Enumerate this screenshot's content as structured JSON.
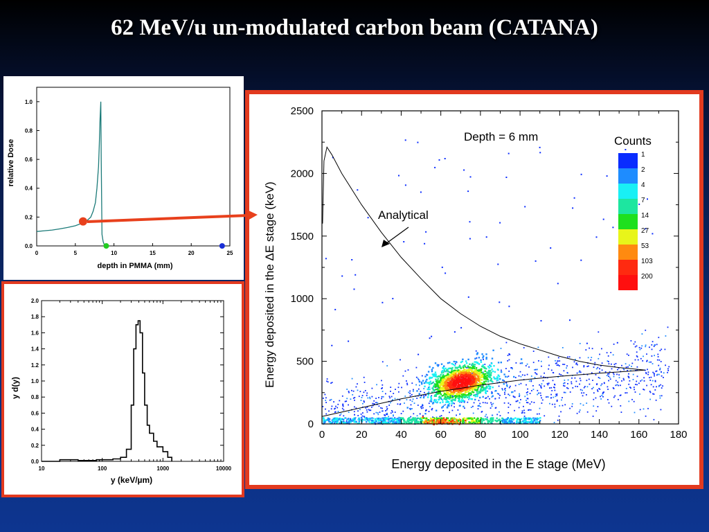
{
  "slide": {
    "title": "62 MeV/u un-modulated carbon beam (CATANA)"
  },
  "chart_data": [
    {
      "type": "line",
      "xlabel": "depth in PMMA (mm)",
      "ylabel": "relative Dose",
      "xlim": [
        0,
        25
      ],
      "ylim": [
        0,
        1.1
      ],
      "xticks": [
        "0",
        "5",
        "10",
        "15",
        "20",
        "25"
      ],
      "yticks": [
        "0.0",
        "0.2",
        "0.4",
        "0.6",
        "0.8",
        "1.0"
      ],
      "series": [
        {
          "x": [
            0,
            1,
            2,
            3,
            4,
            5,
            6,
            6.5,
            7,
            7.3,
            7.6,
            7.8,
            8.0,
            8.1,
            8.2,
            8.3,
            8.35,
            8.45,
            8.6,
            8.8
          ],
          "y": [
            0.1,
            0.105,
            0.11,
            0.118,
            0.128,
            0.14,
            0.16,
            0.175,
            0.2,
            0.24,
            0.3,
            0.4,
            0.55,
            0.7,
            0.88,
            1.0,
            0.6,
            0.08,
            0.03,
            0.0
          ]
        }
      ],
      "markers": [
        {
          "x": 6,
          "y": 0.17,
          "color": "#e8401c"
        },
        {
          "x": 9,
          "y": 0.0,
          "color": "#22cc22"
        },
        {
          "x": 24,
          "y": 0.0,
          "color": "#1a2fd6"
        }
      ],
      "grid": false
    },
    {
      "type": "line",
      "xlabel": "y (keV/µm)",
      "ylabel": "y d(y)",
      "xscale": "log",
      "xlim": [
        10,
        10000
      ],
      "ylim": [
        0,
        2.0
      ],
      "xticks": [
        "10",
        "100",
        "1000",
        "10000"
      ],
      "yticks": [
        "0.0",
        "0.2",
        "0.4",
        "0.6",
        "0.8",
        "1.0",
        "1.2",
        "1.4",
        "1.6",
        "1.8",
        "2.0"
      ],
      "series": [
        {
          "x": [
            10,
            20,
            40,
            80,
            150,
            200,
            250,
            300,
            330,
            360,
            390,
            420,
            460,
            500,
            550,
            600,
            700,
            800,
            1000,
            1200,
            1400
          ],
          "y": [
            0.0,
            0.02,
            0.01,
            0.02,
            0.03,
            0.05,
            0.15,
            0.7,
            1.4,
            1.7,
            1.75,
            1.6,
            1.1,
            0.7,
            0.45,
            0.35,
            0.25,
            0.18,
            0.12,
            0.05,
            0.0
          ]
        }
      ],
      "grid": false
    },
    {
      "type": "heatmap",
      "xlabel": "Energy deposited in the E stage (MeV)",
      "ylabel": "Energy deposited in the ΔE stage (keV)",
      "xlim": [
        0,
        180
      ],
      "ylim": [
        0,
        2500
      ],
      "xticks": [
        "0",
        "20",
        "40",
        "60",
        "80",
        "100",
        "120",
        "140",
        "160",
        "180"
      ],
      "yticks": [
        "0",
        "500",
        "1000",
        "1500",
        "2000",
        "2500"
      ],
      "annotation_depth": "Depth = 6 mm",
      "annotation_curve": "Analytical",
      "analytical_curve": {
        "x": [
          0.3,
          1,
          2.5,
          5,
          10,
          20,
          30,
          40,
          50,
          60,
          70,
          80,
          90,
          100,
          110,
          120,
          130,
          140,
          150,
          160,
          163
        ],
        "y": [
          1600,
          2100,
          2210,
          2150,
          2000,
          1750,
          1530,
          1330,
          1160,
          1000,
          880,
          780,
          700,
          640,
          590,
          540,
          500,
          470,
          450,
          435,
          430
        ]
      },
      "lower_branch": {
        "x": [
          0,
          20,
          40,
          60,
          80,
          100,
          120,
          140,
          163
        ],
        "y": [
          60,
          130,
          200,
          260,
          310,
          350,
          380,
          405,
          430
        ]
      },
      "colorbar": {
        "title": "Counts",
        "levels": [
          "1",
          "2",
          "4",
          "7",
          "14",
          "27",
          "53",
          "103",
          "200"
        ],
        "colors": [
          "#0a2cff",
          "#1e8cff",
          "#19f0f5",
          "#1de6a0",
          "#1ee01e",
          "#e8f51a",
          "#ff8a10",
          "#ff2a10",
          "#ff0f0f"
        ]
      },
      "dense_cluster": {
        "x": [
          60,
          80
        ],
        "y": [
          250,
          480
        ]
      }
    }
  ]
}
